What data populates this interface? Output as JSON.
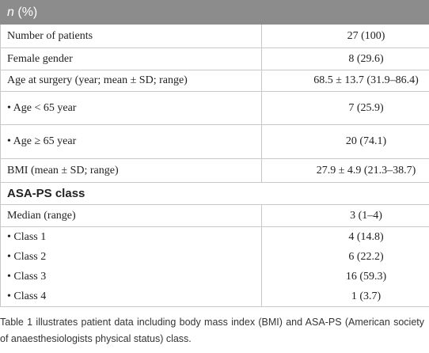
{
  "header": {
    "n_symbol": "n",
    "unit": "(%)"
  },
  "rows": [
    [
      "Number of patients",
      "27 (100)"
    ],
    [
      "Female gender",
      "8 (29.6)"
    ],
    [
      "Age at surgery (year; mean ± SD; range)",
      "68.5 ± 13.7 (31.9–86.4)"
    ],
    [
      "• Age < 65 year",
      "7 (25.9)"
    ],
    [
      "• Age  ≥ 65 year",
      "20 (74.1)"
    ],
    [
      "BMI (mean ± SD; range)",
      "27.9 ± 4.9 (21.3–38.7)"
    ]
  ],
  "section": "ASA-PS class",
  "section_rows": [
    [
      "Median (range)",
      "3 (1–4)"
    ]
  ],
  "class_rows": [
    [
      "• Class 1",
      "4 (14.8)"
    ],
    [
      "• Class 2",
      "6 (22.2)"
    ],
    [
      "• Class 3",
      "16 (59.3)"
    ],
    [
      "• Class 4",
      "1 (3.7)"
    ]
  ],
  "caption": "Table 1 illustrates patient data including body mass index (BMI) and ASA-PS (American society of anaesthesiologists physical status) class."
}
